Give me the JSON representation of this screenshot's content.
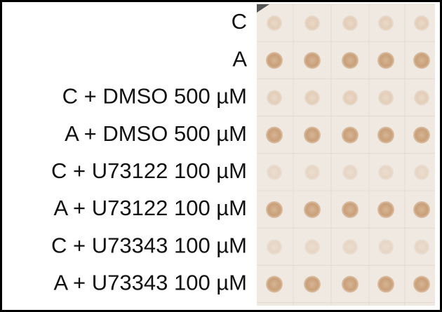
{
  "figure": {
    "rows": [
      {
        "label": "C"
      },
      {
        "label": "A"
      },
      {
        "label": "C + DMSO 500 µM"
      },
      {
        "label": "A + DMSO 500 µM"
      },
      {
        "label": "C + U73122 100 µM"
      },
      {
        "label": "A + U73122 100 µM"
      },
      {
        "label": "C + U73343 100 µM"
      },
      {
        "label": "A + U73343 100 µM"
      }
    ]
  }
}
